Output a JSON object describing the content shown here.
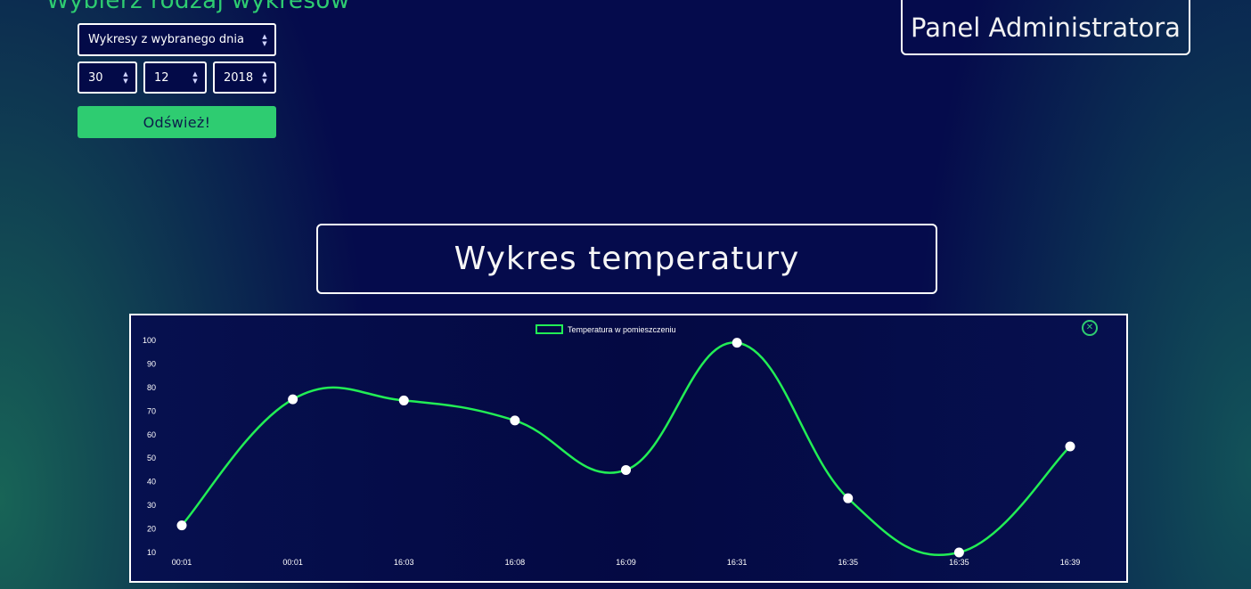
{
  "controls": {
    "heading": "Wybierz rodzaj wykresów",
    "chart_type": {
      "selected": "Wykresy z wybranego dnia"
    },
    "date": {
      "day": "30",
      "month": "12",
      "year": "2018"
    },
    "refresh_label": "Odśwież!"
  },
  "header": {
    "admin_panel_label": "Panel Administratora"
  },
  "chart_section": {
    "title": "Wykres temperatury"
  },
  "colors": {
    "accent_green": "#2ecc71",
    "line_green": "#22ee55",
    "background_navy": "#050b4c"
  },
  "icons": {
    "close": "circle-x-icon"
  },
  "chart_data": {
    "type": "line",
    "categories": [
      "00:01",
      "00:01",
      "16:03",
      "16:08",
      "16:09",
      "16:31",
      "16:35",
      "16:35",
      "16:39"
    ],
    "series": [
      {
        "name": "Temperatura w pomieszczeniu",
        "values": [
          21.5,
          75,
          74.5,
          66,
          45,
          99,
          33,
          10,
          55
        ]
      }
    ],
    "yticks": [
      10,
      20,
      30,
      40,
      50,
      60,
      70,
      80,
      90,
      100
    ],
    "ylim": [
      10,
      100
    ],
    "legend": "top",
    "grid": false
  }
}
